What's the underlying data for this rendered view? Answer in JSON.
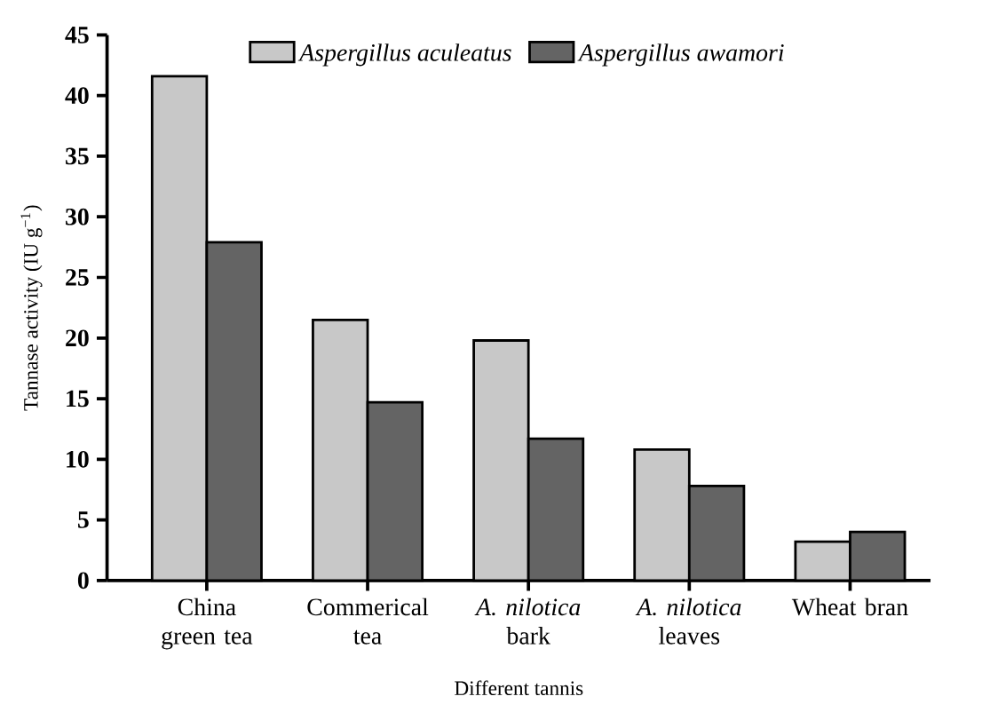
{
  "chart_data": {
    "type": "bar",
    "xlabel": "Different tannis",
    "ylabel": "Tannase activity (IU g$^{−1}$)",
    "categories": [
      "China green tea",
      "Commerical tea",
      "*A. nilotica* bark",
      "*A. nilotica* leaves",
      "Wheat bran"
    ],
    "series": [
      {
        "name": "Aspergillus aculeatus",
        "color": "#c8c8c8",
        "values": [
          41.6,
          21.5,
          19.8,
          10.8,
          3.2
        ]
      },
      {
        "name": "Aspergillus awamori",
        "color": "#646464",
        "values": [
          27.9,
          14.7,
          11.7,
          7.8,
          4.0
        ]
      }
    ],
    "ylim": [
      0,
      45
    ],
    "yticks": [
      0,
      5,
      10,
      15,
      20,
      25,
      30,
      35,
      40,
      45
    ],
    "grid": false,
    "legend": "top"
  }
}
